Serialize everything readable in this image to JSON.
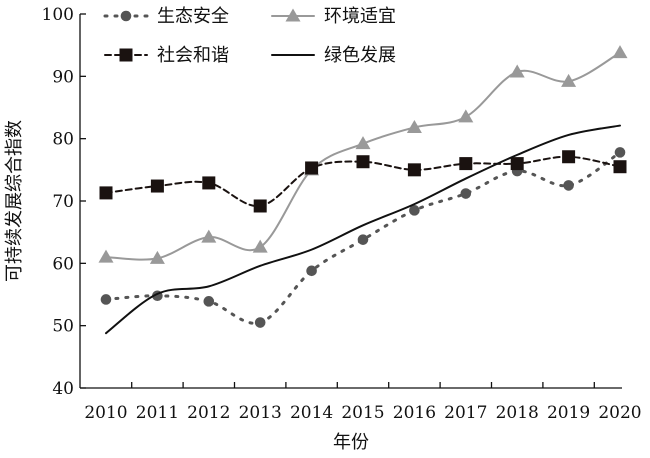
{
  "chart_data": {
    "type": "line",
    "x": [
      2010,
      2011,
      2012,
      2013,
      2014,
      2015,
      2016,
      2017,
      2018,
      2019,
      2020
    ],
    "x_tick_labels": [
      "2010",
      "2011",
      "2012",
      "2013",
      "2014",
      "2015",
      "2016",
      "2017",
      "2018",
      "2019",
      "2020"
    ],
    "ylim": [
      40,
      100
    ],
    "y_ticks": [
      40,
      50,
      60,
      70,
      80,
      90,
      100
    ],
    "y_tick_labels": [
      "40",
      "50",
      "60",
      "70",
      "80",
      "90",
      "100"
    ],
    "xlabel": "年份",
    "ylabel": "可持续发展综合指数",
    "grid": false,
    "legend_position": "top-left",
    "series": [
      {
        "name": "生态安全",
        "style": "dotted",
        "marker": "circle",
        "color": "#555555",
        "values": [
          54.2,
          54.8,
          53.9,
          50.5,
          58.8,
          63.8,
          68.5,
          71.2,
          74.8,
          72.5,
          77.8
        ]
      },
      {
        "name": "环境适宜",
        "style": "solid",
        "marker": "triangle",
        "color": "#999999",
        "values": [
          61.0,
          60.8,
          64.2,
          62.6,
          75.0,
          79.2,
          81.8,
          83.5,
          90.7,
          89.2,
          93.8
        ]
      },
      {
        "name": "社会和谐",
        "style": "dashed",
        "marker": "square",
        "color": "#1a1210",
        "values": [
          71.3,
          72.4,
          72.9,
          69.2,
          75.3,
          76.3,
          75.0,
          76.0,
          76.0,
          77.1,
          75.5
        ]
      },
      {
        "name": "绿色发展",
        "style": "solid",
        "marker": "none",
        "color": "#111111",
        "values": [
          48.8,
          55.1,
          56.3,
          59.6,
          62.2,
          66.1,
          69.5,
          73.6,
          77.4,
          80.6,
          82.1
        ]
      }
    ]
  }
}
